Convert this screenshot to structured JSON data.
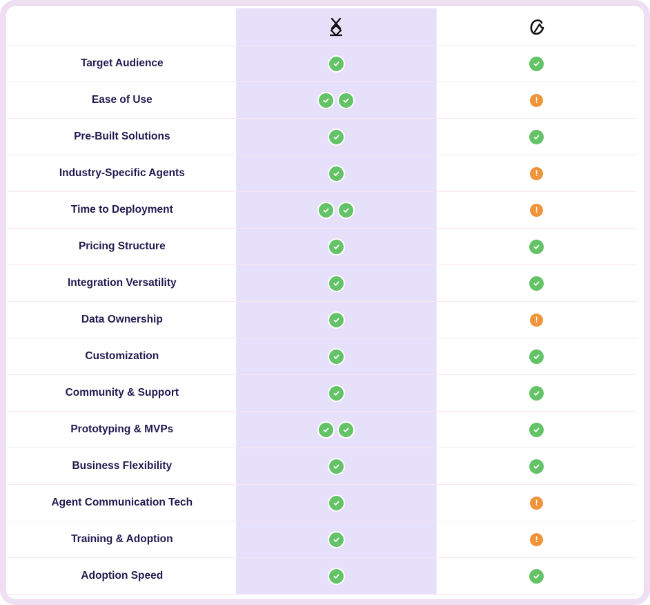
{
  "colors": {
    "accent_column": "#e6e0fa",
    "check": "#63c366",
    "warning": "#f0943a",
    "label_text": "#221a4f",
    "frame": "#efdff3"
  },
  "header": {
    "col_a_icon": "x-logo-icon",
    "col_b_icon": "c-logo-icon"
  },
  "rows": [
    {
      "label": "Target Audience",
      "a": "check",
      "b": "check"
    },
    {
      "label": "Ease of Use",
      "a": "double-check",
      "b": "warning"
    },
    {
      "label": "Pre-Built Solutions",
      "a": "check",
      "b": "check"
    },
    {
      "label": "Industry-Specific Agents",
      "a": "check",
      "b": "warning"
    },
    {
      "label": "Time to Deployment",
      "a": "double-check",
      "b": "warning"
    },
    {
      "label": "Pricing Structure",
      "a": "check",
      "b": "check"
    },
    {
      "label": "Integration Versatility",
      "a": "check",
      "b": "check"
    },
    {
      "label": "Data Ownership",
      "a": "check",
      "b": "warning"
    },
    {
      "label": "Customization",
      "a": "check",
      "b": "check"
    },
    {
      "label": "Community & Support",
      "a": "check",
      "b": "check"
    },
    {
      "label": "Prototyping & MVPs",
      "a": "double-check",
      "b": "check"
    },
    {
      "label": "Business Flexibility",
      "a": "check",
      "b": "check"
    },
    {
      "label": "Agent Communication Tech",
      "a": "check",
      "b": "warning"
    },
    {
      "label": "Training & Adoption",
      "a": "check",
      "b": "warning"
    },
    {
      "label": "Adoption Speed",
      "a": "check",
      "b": "check"
    }
  ]
}
